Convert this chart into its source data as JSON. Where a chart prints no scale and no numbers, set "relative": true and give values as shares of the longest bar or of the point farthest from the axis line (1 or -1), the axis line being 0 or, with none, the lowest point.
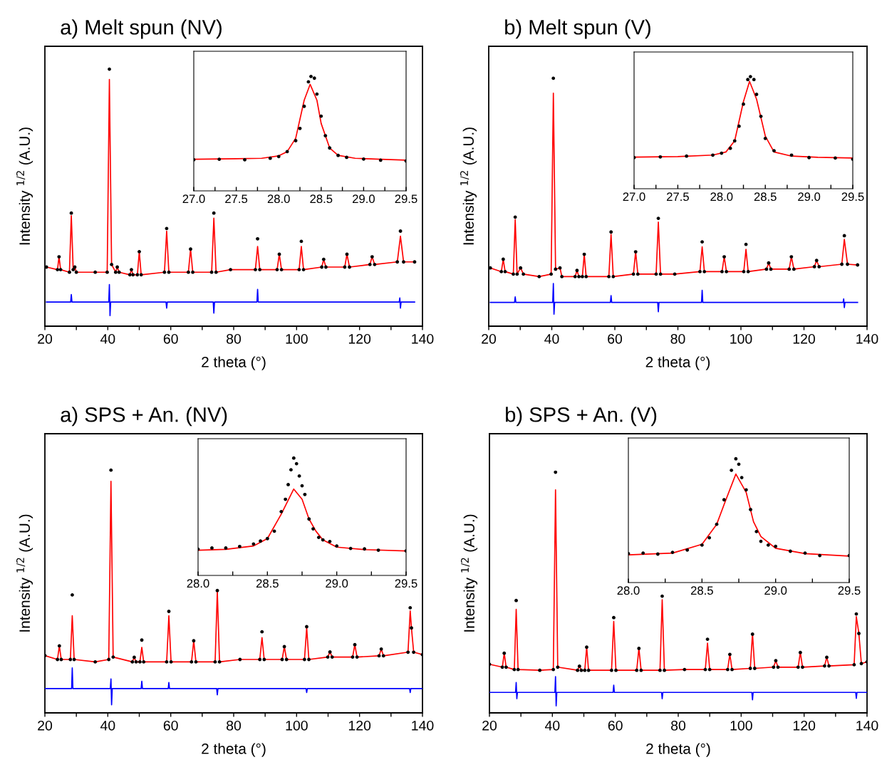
{
  "chart_data": [
    {
      "type": "line",
      "title": "a) Melt spun (NV)",
      "xlabel": "2 theta (°)",
      "ylabel": "Intensity $^{1/2}$ (A.U.)",
      "relative": true,
      "tick_labels": "x",
      "xlim": [
        20,
        140
      ],
      "xticks": [
        20,
        {
          "value": 30,
          "label": null
        },
        40,
        {
          "value": 50,
          "label": null
        },
        60,
        {
          "value": 70,
          "label": null
        },
        80,
        {
          "value": 90,
          "label": null
        },
        100,
        {
          "value": 110,
          "label": null
        },
        120,
        {
          "value": 130,
          "label": null
        },
        140
      ],
      "series": [
        {
          "type": "scatter",
          "color": "#000000",
          "marker": "circle",
          "x": [
            20.5,
            24.0,
            24.5,
            25.0,
            27.8,
            28.4,
            29.0,
            29.5,
            30.0,
            36.0,
            39.8,
            40.5,
            41.2,
            42.5,
            43.0,
            43.6,
            47.0,
            47.5,
            48.0,
            49.4,
            50.0,
            50.6,
            58.0,
            58.7,
            59.4,
            65.6,
            66.3,
            67.0,
            73.0,
            73.7,
            74.4,
            79.0,
            86.9,
            87.6,
            88.3,
            93.8,
            94.5,
            95.2,
            100.8,
            101.5,
            102.2,
            108.0,
            108.6,
            109.3,
            115.3,
            116.0,
            116.8,
            123.3,
            124.0,
            124.8,
            132.0,
            133.0,
            134.0,
            137.5
          ],
          "values": [
            0.23,
            0.22,
            0.27,
            0.22,
            0.21,
            0.44,
            0.22,
            0.23,
            0.21,
            0.21,
            0.21,
            1.0,
            0.24,
            0.21,
            0.23,
            0.21,
            0.2,
            0.22,
            0.2,
            0.2,
            0.29,
            0.2,
            0.21,
            0.38,
            0.21,
            0.21,
            0.3,
            0.21,
            0.21,
            0.44,
            0.21,
            0.22,
            0.22,
            0.34,
            0.22,
            0.22,
            0.28,
            0.22,
            0.22,
            0.33,
            0.22,
            0.23,
            0.26,
            0.23,
            0.23,
            0.28,
            0.23,
            0.24,
            0.27,
            0.24,
            0.25,
            0.37,
            0.25,
            0.25
          ]
        },
        {
          "type": "line",
          "color": "#ff0000",
          "x": [
            20.5,
            24.0,
            24.5,
            25.0,
            27.8,
            28.4,
            29.0,
            29.5,
            30.0,
            36.0,
            39.8,
            40.5,
            41.2,
            42.5,
            43.0,
            43.6,
            47.0,
            47.5,
            48.0,
            49.4,
            50.0,
            50.6,
            58.0,
            58.7,
            59.4,
            65.6,
            66.3,
            67.0,
            73.0,
            73.7,
            74.4,
            79.0,
            86.9,
            87.6,
            88.3,
            93.8,
            94.5,
            95.2,
            100.8,
            101.5,
            102.2,
            108.0,
            108.6,
            109.3,
            115.3,
            116.0,
            116.8,
            123.3,
            124.0,
            124.8,
            132.0,
            133.0,
            134.0,
            137.5
          ],
          "values": [
            0.23,
            0.22,
            0.27,
            0.22,
            0.21,
            0.43,
            0.22,
            0.23,
            0.21,
            0.21,
            0.21,
            0.96,
            0.24,
            0.21,
            0.23,
            0.21,
            0.2,
            0.22,
            0.2,
            0.2,
            0.29,
            0.2,
            0.21,
            0.37,
            0.21,
            0.21,
            0.3,
            0.21,
            0.21,
            0.42,
            0.21,
            0.22,
            0.22,
            0.31,
            0.22,
            0.22,
            0.28,
            0.22,
            0.22,
            0.31,
            0.22,
            0.23,
            0.26,
            0.23,
            0.23,
            0.28,
            0.23,
            0.24,
            0.27,
            0.24,
            0.25,
            0.35,
            0.25,
            0.25
          ]
        },
        {
          "type": "line",
          "color": "#0000ff",
          "x": [
            20.5,
            28.2,
            28.4,
            28.6,
            40.3,
            40.5,
            40.7,
            40.9,
            58.5,
            58.7,
            58.9,
            73.5,
            73.7,
            73.9,
            87.4,
            87.6,
            87.8,
            132.6,
            132.8,
            133.0,
            133.2,
            137.5
          ],
          "values": [
            0.094,
            0.094,
            0.123,
            0.094,
            0.094,
            0.162,
            0.041,
            0.094,
            0.094,
            0.07,
            0.094,
            0.094,
            0.051,
            0.094,
            0.094,
            0.143,
            0.094,
            0.094,
            0.11,
            0.07,
            0.094,
            0.094
          ]
        }
      ]
    },
    {
      "type": "line",
      "relative": true,
      "tick_labels": "x",
      "xlim": [
        27.0,
        29.5
      ],
      "xticks": [
        {
          "value": 27.0,
          "label": "27.0"
        },
        {
          "value": 27.25,
          "label": null
        },
        {
          "value": 27.5,
          "label": "27.5"
        },
        {
          "value": 27.75,
          "label": null
        },
        {
          "value": 28.0,
          "label": "28.0"
        },
        {
          "value": 28.25,
          "label": null
        },
        {
          "value": 28.5,
          "label": "28.5"
        },
        {
          "value": 28.75,
          "label": null
        },
        {
          "value": 29.0,
          "label": "29.0"
        },
        {
          "value": 29.25,
          "label": null
        },
        {
          "value": 29.5,
          "label": "29.5"
        }
      ],
      "series": [
        {
          "type": "scatter",
          "color": "#000000",
          "marker": "circle",
          "x": [
            27.0,
            27.3,
            27.6,
            27.9,
            28.0,
            28.1,
            28.2,
            28.25,
            28.3,
            28.35,
            28.38,
            28.42,
            28.45,
            28.5,
            28.55,
            28.6,
            28.7,
            28.8,
            29.0,
            29.2,
            29.5
          ],
          "values": [
            0.272,
            0.276,
            0.272,
            0.285,
            0.3,
            0.343,
            0.439,
            0.546,
            0.739,
            0.953,
            1.0,
            0.985,
            0.846,
            0.653,
            0.482,
            0.375,
            0.31,
            0.293,
            0.278,
            0.268,
            0.261
          ]
        },
        {
          "type": "line",
          "color": "#ff0000",
          "x": [
            27.0,
            27.5,
            27.8,
            28.0,
            28.1,
            28.2,
            28.3,
            28.37,
            28.45,
            28.5,
            28.6,
            28.7,
            28.9,
            29.2,
            29.5
          ],
          "values": [
            0.276,
            0.281,
            0.285,
            0.306,
            0.343,
            0.46,
            0.792,
            0.931,
            0.792,
            0.589,
            0.375,
            0.31,
            0.285,
            0.276,
            0.268
          ]
        }
      ]
    },
    {
      "type": "line",
      "title": "b) Melt spun (V)",
      "xlabel": "2 theta (°)",
      "ylabel": "Intensity $^{1/2}$ (A.U.)",
      "relative": true,
      "tick_labels": "x",
      "xlim": [
        20,
        140
      ],
      "xticks": [
        20,
        {
          "value": 30,
          "label": null
        },
        40,
        {
          "value": 50,
          "label": null
        },
        60,
        {
          "value": 70,
          "label": null
        },
        80,
        {
          "value": 90,
          "label": null
        },
        100,
        {
          "value": 110,
          "label": null
        },
        120,
        {
          "value": 130,
          "label": null
        },
        140
      ],
      "series": [
        {
          "type": "scatter",
          "color": "#000000",
          "marker": "circle",
          "x": [
            20.5,
            24.0,
            24.6,
            25.2,
            27.8,
            28.4,
            29.0,
            30.1,
            31.0,
            36.0,
            39.8,
            40.5,
            41.2,
            42.6,
            43.2,
            47.4,
            48.0,
            48.6,
            49.7,
            50.3,
            50.9,
            58.1,
            58.8,
            59.5,
            65.9,
            66.6,
            67.3,
            73.1,
            73.8,
            74.5,
            79.0,
            87.0,
            87.7,
            88.4,
            94.0,
            94.7,
            95.4,
            100.9,
            101.6,
            102.3,
            108.1,
            108.8,
            109.5,
            115.3,
            116.0,
            116.8,
            123.3,
            124.0,
            124.8,
            132.0,
            132.8,
            133.8,
            137.0
          ],
          "values": [
            0.235,
            0.22,
            0.27,
            0.22,
            0.21,
            0.44,
            0.21,
            0.235,
            0.21,
            0.2,
            0.21,
            1.0,
            0.23,
            0.235,
            0.2,
            0.2,
            0.225,
            0.2,
            0.2,
            0.29,
            0.2,
            0.2,
            0.38,
            0.2,
            0.21,
            0.3,
            0.21,
            0.21,
            0.435,
            0.21,
            0.21,
            0.22,
            0.34,
            0.22,
            0.22,
            0.28,
            0.22,
            0.22,
            0.33,
            0.22,
            0.23,
            0.255,
            0.23,
            0.23,
            0.28,
            0.23,
            0.24,
            0.265,
            0.24,
            0.25,
            0.365,
            0.25,
            0.247
          ]
        },
        {
          "type": "line",
          "color": "#ff0000",
          "x": [
            20.5,
            24.0,
            24.6,
            25.2,
            27.8,
            28.4,
            29.0,
            30.1,
            31.0,
            36.0,
            39.8,
            40.5,
            41.2,
            42.6,
            43.2,
            47.4,
            48.0,
            48.6,
            49.7,
            50.3,
            50.9,
            58.1,
            58.8,
            59.5,
            65.9,
            66.6,
            67.3,
            73.1,
            73.8,
            74.5,
            79.0,
            87.0,
            87.7,
            88.4,
            94.0,
            94.7,
            95.4,
            100.9,
            101.6,
            102.3,
            108.1,
            108.8,
            109.5,
            115.3,
            116.0,
            116.8,
            123.3,
            124.0,
            124.8,
            132.0,
            132.8,
            133.8,
            137.0
          ],
          "values": [
            0.235,
            0.22,
            0.27,
            0.22,
            0.21,
            0.43,
            0.21,
            0.235,
            0.21,
            0.2,
            0.21,
            0.94,
            0.23,
            0.235,
            0.2,
            0.2,
            0.225,
            0.2,
            0.2,
            0.29,
            0.2,
            0.2,
            0.37,
            0.2,
            0.21,
            0.3,
            0.21,
            0.21,
            0.42,
            0.21,
            0.21,
            0.22,
            0.32,
            0.22,
            0.22,
            0.28,
            0.22,
            0.22,
            0.31,
            0.22,
            0.23,
            0.255,
            0.23,
            0.23,
            0.28,
            0.23,
            0.24,
            0.265,
            0.24,
            0.25,
            0.35,
            0.25,
            0.247
          ]
        },
        {
          "type": "line",
          "color": "#0000ff",
          "x": [
            20.5,
            28.2,
            28.4,
            28.6,
            40.3,
            40.5,
            40.7,
            40.9,
            58.6,
            58.8,
            59.0,
            73.6,
            73.8,
            74.0,
            87.5,
            87.7,
            87.9,
            132.4,
            132.6,
            132.8,
            133.0,
            137.0
          ],
          "values": [
            0.096,
            0.096,
            0.118,
            0.096,
            0.096,
            0.172,
            0.048,
            0.096,
            0.096,
            0.123,
            0.096,
            0.096,
            0.058,
            0.096,
            0.096,
            0.145,
            0.096,
            0.096,
            0.11,
            0.075,
            0.096,
            0.096
          ]
        }
      ]
    },
    {
      "type": "line",
      "relative": true,
      "tick_labels": "x",
      "xlim": [
        27.0,
        29.5
      ],
      "xticks": [
        {
          "value": 27.0,
          "label": "27.0"
        },
        {
          "value": 27.25,
          "label": null
        },
        {
          "value": 27.5,
          "label": "27.5"
        },
        {
          "value": 27.75,
          "label": null
        },
        {
          "value": 28.0,
          "label": "28.0"
        },
        {
          "value": 28.25,
          "label": null
        },
        {
          "value": 28.5,
          "label": "28.5"
        },
        {
          "value": 28.75,
          "label": null
        },
        {
          "value": 29.0,
          "label": "29.0"
        },
        {
          "value": 29.25,
          "label": null
        },
        {
          "value": 29.5,
          "label": "29.5"
        }
      ],
      "series": [
        {
          "type": "scatter",
          "color": "#000000",
          "marker": "circle",
          "x": [
            27.0,
            27.3,
            27.6,
            27.9,
            28.0,
            28.1,
            28.15,
            28.2,
            28.25,
            28.3,
            28.33,
            28.37,
            28.4,
            28.45,
            28.5,
            28.6,
            28.8,
            29.0,
            29.3,
            29.5
          ],
          "values": [
            0.278,
            0.284,
            0.291,
            0.3,
            0.317,
            0.361,
            0.427,
            0.558,
            0.755,
            0.974,
            1.0,
            0.974,
            0.842,
            0.646,
            0.449,
            0.339,
            0.3,
            0.278,
            0.274,
            0.263
          ]
        },
        {
          "type": "line",
          "color": "#ff0000",
          "x": [
            27.0,
            27.5,
            27.9,
            28.05,
            28.15,
            28.25,
            28.32,
            28.4,
            28.5,
            28.6,
            28.8,
            29.1,
            29.5
          ],
          "values": [
            0.282,
            0.287,
            0.3,
            0.328,
            0.427,
            0.777,
            0.958,
            0.799,
            0.47,
            0.328,
            0.291,
            0.28,
            0.274
          ]
        }
      ]
    },
    {
      "type": "line",
      "title": "a) SPS + An. (NV)",
      "xlabel": "2 theta (°)",
      "ylabel": "Intensity $^{1/2}$ (A.U.)",
      "relative": true,
      "tick_labels": "x",
      "xlim": [
        20,
        140
      ],
      "xticks": [
        20,
        {
          "value": 30,
          "label": null
        },
        40,
        {
          "value": 50,
          "label": null
        },
        60,
        {
          "value": 70,
          "label": null
        },
        80,
        {
          "value": 90,
          "label": null
        },
        100,
        {
          "value": 110,
          "label": null
        },
        120,
        {
          "value": 130,
          "label": null
        },
        140
      ],
      "series": [
        {
          "type": "scatter",
          "color": "#000000",
          "marker": "circle",
          "x": [
            20.0,
            24.0,
            24.6,
            25.2,
            28.1,
            28.7,
            29.3,
            36.0,
            40.3,
            41.0,
            41.7,
            47.8,
            48.4,
            49.0,
            50.2,
            50.8,
            51.4,
            58.7,
            59.4,
            60.1,
            66.6,
            67.3,
            68.0,
            74.1,
            74.8,
            75.5,
            82.0,
            88.3,
            89.0,
            89.7,
            95.4,
            96.1,
            96.8,
            102.5,
            103.2,
            103.9,
            109.9,
            110.6,
            111.3,
            117.8,
            118.5,
            119.2,
            126.2,
            126.9,
            127.6,
            135.4,
            136.1,
            136.5,
            137.2,
            140.0
          ],
          "values": [
            0.236,
            0.22,
            0.276,
            0.22,
            0.22,
            0.486,
            0.22,
            0.21,
            0.22,
            1.0,
            0.23,
            0.21,
            0.229,
            0.21,
            0.21,
            0.3,
            0.21,
            0.21,
            0.418,
            0.21,
            0.21,
            0.297,
            0.21,
            0.21,
            0.504,
            0.21,
            0.22,
            0.22,
            0.334,
            0.22,
            0.22,
            0.273,
            0.22,
            0.22,
            0.355,
            0.22,
            0.23,
            0.251,
            0.23,
            0.23,
            0.281,
            0.23,
            0.235,
            0.263,
            0.235,
            0.25,
            0.433,
            0.35,
            0.25,
            0.24
          ]
        },
        {
          "type": "line",
          "color": "#ff0000",
          "x": [
            20.0,
            24.0,
            24.6,
            25.2,
            28.1,
            28.7,
            29.3,
            36.0,
            40.3,
            41.0,
            41.7,
            47.8,
            48.4,
            49.0,
            50.2,
            50.8,
            51.4,
            58.7,
            59.4,
            60.1,
            66.6,
            67.3,
            68.0,
            74.1,
            74.8,
            75.5,
            82.0,
            88.3,
            89.0,
            89.7,
            95.4,
            96.1,
            96.8,
            102.5,
            103.2,
            103.9,
            109.9,
            110.6,
            111.3,
            117.8,
            118.5,
            119.2,
            126.2,
            126.9,
            127.6,
            135.4,
            136.1,
            136.5,
            137.2,
            140.0
          ],
          "values": [
            0.236,
            0.22,
            0.276,
            0.22,
            0.22,
            0.4,
            0.22,
            0.21,
            0.22,
            0.954,
            0.23,
            0.21,
            0.229,
            0.21,
            0.21,
            0.27,
            0.21,
            0.21,
            0.4,
            0.21,
            0.21,
            0.297,
            0.21,
            0.21,
            0.5,
            0.21,
            0.22,
            0.22,
            0.31,
            0.22,
            0.22,
            0.273,
            0.22,
            0.22,
            0.35,
            0.22,
            0.23,
            0.251,
            0.23,
            0.23,
            0.281,
            0.23,
            0.235,
            0.263,
            0.235,
            0.25,
            0.42,
            0.35,
            0.25,
            0.24
          ]
        },
        {
          "type": "line",
          "color": "#0000ff",
          "x": [
            20.0,
            28.5,
            28.7,
            28.9,
            40.8,
            41.0,
            41.2,
            41.4,
            50.6,
            50.8,
            51.0,
            59.2,
            59.4,
            59.6,
            74.6,
            74.8,
            75.0,
            103.0,
            103.2,
            103.4,
            135.9,
            136.1,
            136.3,
            140.0
          ],
          "values": [
            0.1,
            0.1,
            0.185,
            0.1,
            0.1,
            0.14,
            0.033,
            0.1,
            0.1,
            0.13,
            0.1,
            0.1,
            0.125,
            0.1,
            0.1,
            0.074,
            0.1,
            0.1,
            0.084,
            0.1,
            0.1,
            0.084,
            0.1,
            0.1
          ]
        }
      ]
    },
    {
      "type": "line",
      "relative": true,
      "tick_labels": "x",
      "xlim": [
        28.0,
        29.5
      ],
      "xticks": [
        {
          "value": 28.0,
          "label": "28.0"
        },
        {
          "value": 28.25,
          "label": null
        },
        {
          "value": 28.5,
          "label": "28.5"
        },
        {
          "value": 28.75,
          "label": null
        },
        {
          "value": 29.0,
          "label": "29.0"
        },
        {
          "value": 29.25,
          "label": null
        },
        {
          "value": 29.5,
          "label": "29.5"
        }
      ],
      "series": [
        {
          "type": "scatter",
          "color": "#000000",
          "marker": "circle",
          "x": [
            28.0,
            28.1,
            28.2,
            28.3,
            28.4,
            28.45,
            28.5,
            28.55,
            28.6,
            28.63,
            28.65,
            28.67,
            28.69,
            28.71,
            28.73,
            28.75,
            28.77,
            28.8,
            28.83,
            28.87,
            28.9,
            28.95,
            29.0,
            29.1,
            29.2,
            29.3,
            29.5
          ],
          "values": [
            0.224,
            0.234,
            0.234,
            0.247,
            0.268,
            0.293,
            0.314,
            0.377,
            0.544,
            0.649,
            0.774,
            0.9,
            1.0,
            0.952,
            0.847,
            0.764,
            0.69,
            0.481,
            0.397,
            0.324,
            0.303,
            0.289,
            0.251,
            0.23,
            0.226,
            0.215,
            0.209
          ]
        },
        {
          "type": "line",
          "color": "#ff0000",
          "x": [
            28.0,
            28.2,
            28.4,
            28.5,
            28.6,
            28.69,
            28.75,
            28.8,
            28.85,
            28.9,
            29.0,
            29.2,
            29.5
          ],
          "values": [
            0.215,
            0.222,
            0.251,
            0.314,
            0.523,
            0.736,
            0.649,
            0.481,
            0.377,
            0.303,
            0.241,
            0.22,
            0.209
          ]
        }
      ]
    },
    {
      "type": "line",
      "title": "b) SPS + An. (V)",
      "xlabel": "2 theta (°)",
      "ylabel": "Intensity $^{1/2}$ (A.U.)",
      "relative": true,
      "tick_labels": "x",
      "xlim": [
        20,
        140
      ],
      "xticks": [
        20,
        {
          "value": 30,
          "label": null
        },
        40,
        {
          "value": 50,
          "label": null
        },
        60,
        {
          "value": 70,
          "label": null
        },
        80,
        {
          "value": 90,
          "label": null
        },
        100,
        {
          "value": 110,
          "label": null
        },
        120,
        {
          "value": 130,
          "label": null
        },
        140
      ],
      "series": [
        {
          "type": "scatter",
          "color": "#000000",
          "marker": "circle",
          "x": [
            20.0,
            24.1,
            24.7,
            25.3,
            27.9,
            28.5,
            29.1,
            36.0,
            40.3,
            41.0,
            41.7,
            48.0,
            48.6,
            49.2,
            50.3,
            50.9,
            51.5,
            58.8,
            59.5,
            60.2,
            66.8,
            67.5,
            68.2,
            74.2,
            74.9,
            75.6,
            82.0,
            88.6,
            89.3,
            90.0,
            95.7,
            96.4,
            97.1,
            102.9,
            103.6,
            104.3,
            110.3,
            111.0,
            111.7,
            118.1,
            118.8,
            119.5,
            126.5,
            127.2,
            127.9,
            135.9,
            136.6,
            137.4,
            138.2,
            140.0
          ],
          "values": [
            0.202,
            0.19,
            0.248,
            0.19,
            0.18,
            0.467,
            0.18,
            0.177,
            0.18,
            1.0,
            0.19,
            0.177,
            0.194,
            0.177,
            0.177,
            0.273,
            0.177,
            0.177,
            0.396,
            0.177,
            0.177,
            0.268,
            0.177,
            0.177,
            0.485,
            0.177,
            0.18,
            0.18,
            0.306,
            0.18,
            0.18,
            0.243,
            0.18,
            0.185,
            0.327,
            0.185,
            0.19,
            0.217,
            0.19,
            0.19,
            0.251,
            0.19,
            0.195,
            0.231,
            0.195,
            0.2,
            0.411,
            0.33,
            0.205,
            0.212
          ]
        },
        {
          "type": "line",
          "color": "#ff0000",
          "x": [
            20.0,
            24.1,
            24.7,
            25.3,
            27.9,
            28.5,
            29.1,
            36.0,
            40.3,
            41.0,
            41.7,
            48.0,
            48.6,
            49.2,
            50.3,
            50.9,
            51.5,
            58.8,
            59.5,
            60.2,
            66.8,
            67.5,
            68.2,
            74.2,
            74.9,
            75.6,
            82.0,
            88.6,
            89.3,
            90.0,
            95.7,
            96.4,
            97.1,
            102.9,
            103.6,
            104.3,
            110.3,
            111.0,
            111.7,
            118.1,
            118.8,
            119.5,
            126.5,
            127.2,
            127.9,
            135.9,
            136.6,
            137.4,
            138.2,
            140.0
          ],
          "values": [
            0.202,
            0.19,
            0.248,
            0.19,
            0.18,
            0.43,
            0.18,
            0.177,
            0.18,
            0.927,
            0.19,
            0.177,
            0.194,
            0.177,
            0.177,
            0.273,
            0.177,
            0.177,
            0.38,
            0.177,
            0.177,
            0.268,
            0.177,
            0.177,
            0.47,
            0.177,
            0.18,
            0.18,
            0.29,
            0.18,
            0.18,
            0.243,
            0.18,
            0.185,
            0.33,
            0.185,
            0.19,
            0.217,
            0.19,
            0.19,
            0.251,
            0.19,
            0.195,
            0.231,
            0.195,
            0.2,
            0.4,
            0.33,
            0.205,
            0.212
          ]
        },
        {
          "type": "line",
          "color": "#0000ff",
          "x": [
            20.0,
            28.3,
            28.5,
            28.7,
            28.9,
            40.8,
            41.0,
            41.2,
            41.4,
            59.3,
            59.5,
            59.7,
            74.7,
            74.9,
            75.1,
            103.4,
            103.6,
            103.8,
            136.4,
            136.6,
            136.8,
            140.0
          ],
          "values": [
            0.085,
            0.085,
            0.126,
            0.059,
            0.085,
            0.085,
            0.151,
            0.029,
            0.085,
            0.085,
            0.115,
            0.085,
            0.085,
            0.059,
            0.085,
            0.085,
            0.054,
            0.085,
            0.085,
            0.06,
            0.085,
            0.085
          ]
        }
      ]
    },
    {
      "type": "line",
      "relative": true,
      "tick_labels": "x",
      "xlim": [
        28.0,
        29.5
      ],
      "xticks": [
        {
          "value": 28.0,
          "label": "28.0"
        },
        {
          "value": 28.25,
          "label": null
        },
        {
          "value": 28.5,
          "label": "28.5"
        },
        {
          "value": 28.75,
          "label": null
        },
        {
          "value": 29.0,
          "label": "29.0"
        },
        {
          "value": 29.25,
          "label": null
        },
        {
          "value": 29.5,
          "label": "29.5"
        }
      ],
      "series": [
        {
          "type": "scatter",
          "color": "#000000",
          "marker": "circle",
          "x": [
            28.0,
            28.1,
            28.2,
            28.3,
            28.4,
            28.5,
            28.55,
            28.6,
            28.65,
            28.7,
            28.73,
            28.75,
            28.77,
            28.8,
            28.83,
            28.87,
            28.9,
            28.95,
            29.0,
            29.1,
            29.2,
            29.3,
            29.5
          ],
          "values": [
            0.234,
            0.238,
            0.23,
            0.244,
            0.263,
            0.303,
            0.362,
            0.471,
            0.669,
            0.907,
            1.0,
            0.956,
            0.848,
            0.749,
            0.59,
            0.412,
            0.333,
            0.303,
            0.293,
            0.253,
            0.238,
            0.218,
            0.218
          ]
        },
        {
          "type": "line",
          "color": "#ff0000",
          "x": [
            28.0,
            28.3,
            28.5,
            28.6,
            28.65,
            28.73,
            28.8,
            28.85,
            28.9,
            29.0,
            29.2,
            29.5
          ],
          "values": [
            0.224,
            0.238,
            0.309,
            0.471,
            0.63,
            0.877,
            0.729,
            0.491,
            0.372,
            0.277,
            0.234,
            0.214
          ]
        }
      ]
    }
  ]
}
